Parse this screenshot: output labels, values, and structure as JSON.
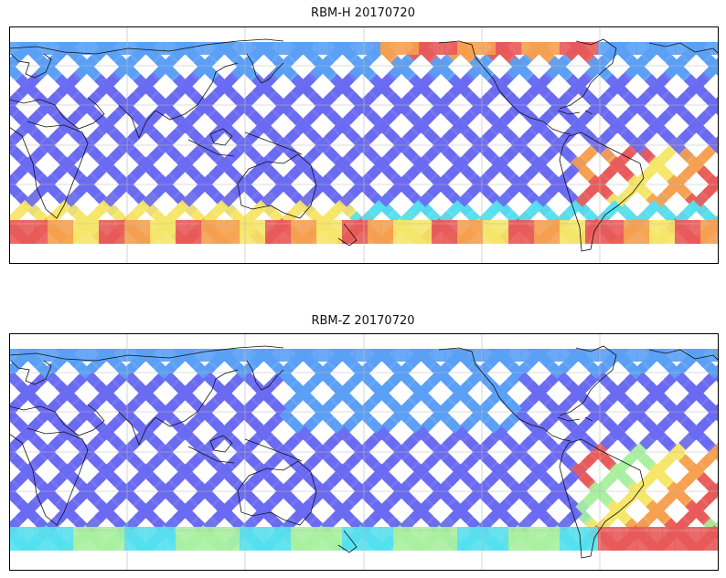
{
  "figure": {
    "panels": [
      {
        "title": "RBM-H 20170720",
        "dominant_color": "#6a6af2",
        "hot_spots": [
          {
            "region": "southern-high-latitude-band",
            "color": "#e85a5a"
          },
          {
            "region": "north-pacific-high-latitude",
            "color": "#f0904a"
          },
          {
            "region": "south-atlantic",
            "color": "#e85a5a"
          }
        ]
      },
      {
        "title": "RBM-Z 20170720",
        "dominant_color": "#6a6af2",
        "hot_spots": [
          {
            "region": "south-atlantic",
            "color": "#e85a5a"
          },
          {
            "region": "southern-high-latitude-band",
            "color": "#90ee90"
          }
        ]
      }
    ],
    "colormap": [
      "#6a6af2",
      "#5aa0f5",
      "#55e0f0",
      "#a8f0a0",
      "#f5e66a",
      "#f5a050",
      "#e85a5a"
    ]
  }
}
